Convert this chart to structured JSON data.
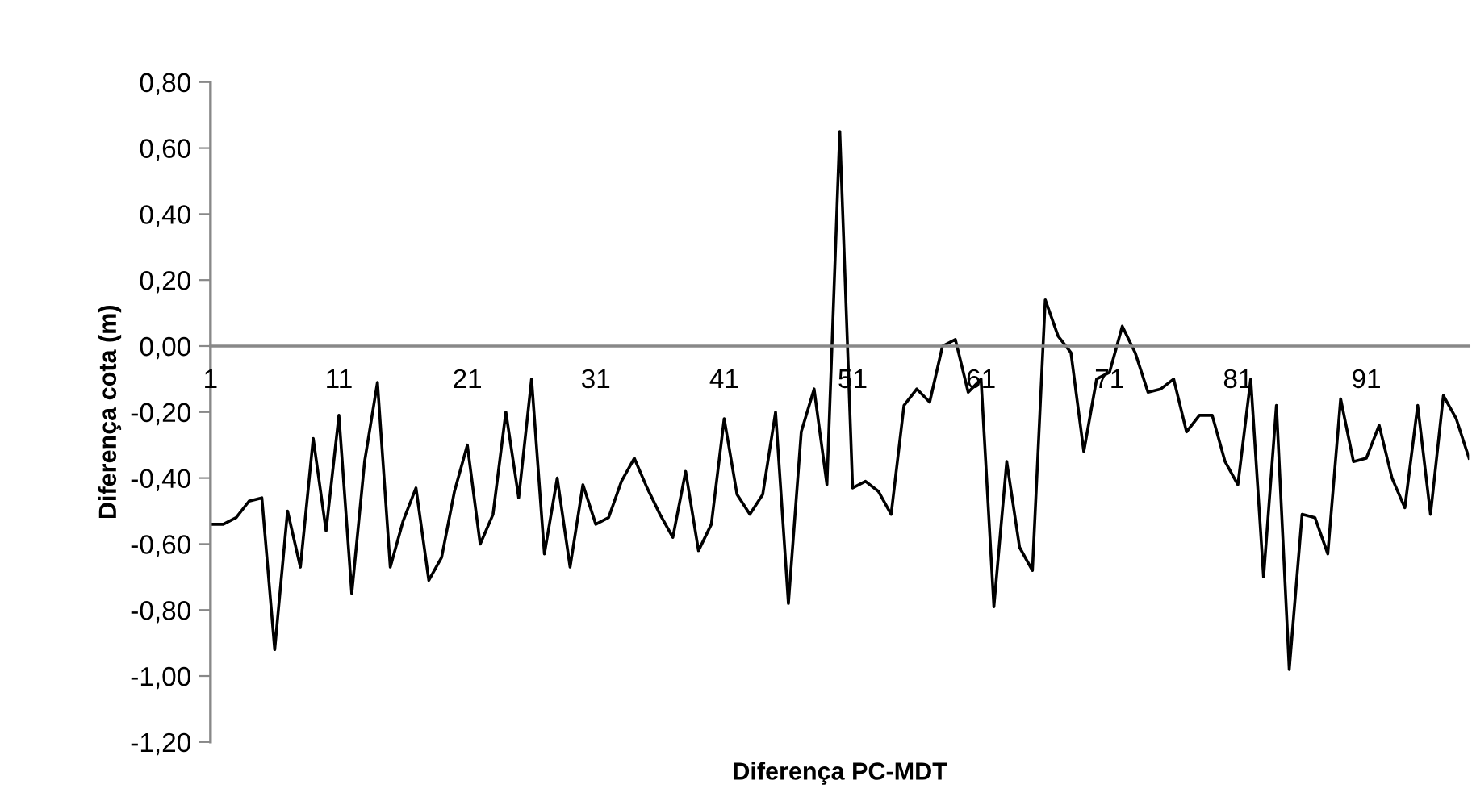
{
  "chart_data": {
    "type": "line",
    "xlabel": "Diferença PC-MDT",
    "ylabel": "Diferença cota (m)",
    "categories": [
      "1",
      null,
      null,
      null,
      null,
      null,
      null,
      null,
      null,
      null,
      "11",
      null,
      null,
      null,
      null,
      null,
      null,
      null,
      null,
      null,
      "21",
      null,
      null,
      null,
      null,
      null,
      null,
      null,
      null,
      null,
      "31",
      null,
      null,
      null,
      null,
      null,
      null,
      null,
      null,
      null,
      "41",
      null,
      null,
      null,
      null,
      null,
      null,
      null,
      null,
      null,
      "51",
      null,
      null,
      null,
      null,
      null,
      null,
      null,
      null,
      null,
      "61",
      null,
      null,
      null,
      null,
      null,
      null,
      null,
      null,
      null,
      "71",
      null,
      null,
      null,
      null,
      null,
      null,
      null,
      null,
      null,
      "81",
      null,
      null,
      null,
      null,
      null,
      null,
      null,
      null,
      null,
      "91",
      null,
      null,
      null,
      null,
      null,
      null,
      null,
      null
    ],
    "series": [
      {
        "color": "#000000",
        "values": [
          -0.54,
          -0.54,
          -0.52,
          -0.47,
          -0.46,
          -0.92,
          -0.5,
          -0.67,
          -0.28,
          -0.56,
          -0.21,
          -0.75,
          -0.35,
          -0.11,
          -0.67,
          -0.53,
          -0.43,
          -0.71,
          -0.64,
          -0.44,
          -0.3,
          -0.6,
          -0.51,
          -0.2,
          -0.46,
          -0.1,
          -0.63,
          -0.4,
          -0.67,
          -0.42,
          -0.54,
          -0.52,
          -0.41,
          -0.34,
          -0.43,
          -0.51,
          -0.58,
          -0.38,
          -0.62,
          -0.54,
          -0.22,
          -0.45,
          -0.51,
          -0.45,
          -0.2,
          -0.78,
          -0.26,
          -0.13,
          -0.42,
          0.65,
          -0.43,
          -0.41,
          -0.44,
          -0.51,
          -0.18,
          -0.13,
          -0.17,
          0.0,
          0.02,
          -0.14,
          -0.1,
          -0.79,
          -0.35,
          -0.61,
          -0.68,
          0.14,
          0.03,
          -0.02,
          -0.32,
          -0.1,
          -0.08,
          0.06,
          -0.02,
          -0.14,
          -0.13,
          -0.1,
          -0.26,
          -0.21,
          -0.21,
          -0.35,
          -0.42,
          -0.1,
          -0.7,
          -0.18,
          -0.98,
          -0.51,
          -0.52,
          -0.63,
          -0.16,
          -0.35,
          -0.34,
          -0.24,
          -0.4,
          -0.49,
          -0.18,
          -0.51,
          -0.15,
          -0.22,
          -0.34
        ]
      }
    ],
    "ylim": [
      -1.2,
      0.8
    ],
    "yticks": [
      {
        "value": -1.2,
        "label": "-1,20"
      },
      {
        "value": -1.0,
        "label": "-1,00"
      },
      {
        "value": -0.8,
        "label": "-0,80"
      },
      {
        "value": -0.6,
        "label": "-0,60"
      },
      {
        "value": -0.4,
        "label": "-0,40"
      },
      {
        "value": -0.2,
        "label": "-0,20"
      },
      {
        "value": 0.0,
        "label": "0,00"
      },
      {
        "value": 0.2,
        "label": "0,20"
      },
      {
        "value": 0.4,
        "label": "0,40"
      },
      {
        "value": 0.6,
        "label": "0,60"
      },
      {
        "value": 0.8,
        "label": "0,80"
      }
    ],
    "grid": false,
    "legend": false,
    "marker": "none",
    "line_style": "solid"
  }
}
